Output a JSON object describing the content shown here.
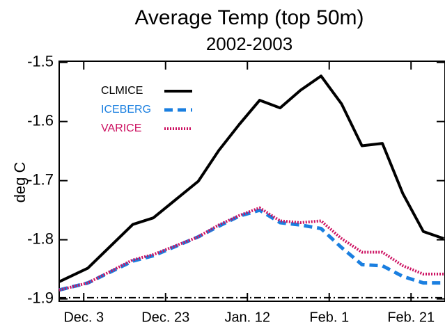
{
  "chart_data": {
    "type": "line",
    "title": "Average Temp (top 50m)",
    "subtitle": "2002-2003",
    "y_label": "deg C",
    "x": [
      -6,
      1,
      12,
      17,
      28,
      33,
      38,
      43,
      48,
      53,
      58,
      63,
      68,
      73,
      78,
      83,
      88
    ],
    "series": [
      {
        "name": "CLMICE",
        "color": "#000000",
        "style": "solid",
        "values": [
          -1.871,
          -1.848,
          -1.774,
          -1.763,
          -1.701,
          -1.649,
          -1.605,
          -1.564,
          -1.577,
          -1.547,
          -1.523,
          -1.57,
          -1.641,
          -1.637,
          -1.722,
          -1.786,
          -1.798
        ]
      },
      {
        "name": "ICEBERG",
        "color": "#1a7fe0",
        "style": "dashed",
        "values": [
          -1.885,
          -1.873,
          -1.836,
          -1.827,
          -1.795,
          -1.777,
          -1.76,
          -1.75,
          -1.771,
          -1.775,
          -1.781,
          -1.813,
          -1.842,
          -1.844,
          -1.862,
          -1.873,
          -1.873
        ]
      },
      {
        "name": "VARICE",
        "color": "#cc1060",
        "style": "dotted",
        "values": [
          -1.885,
          -1.873,
          -1.834,
          -1.825,
          -1.795,
          -1.775,
          -1.759,
          -1.746,
          -1.768,
          -1.771,
          -1.768,
          -1.798,
          -1.821,
          -1.821,
          -1.844,
          -1.858,
          -1.858
        ]
      }
    ],
    "reference_line": -1.898,
    "xlim": [
      -6,
      88.3
    ],
    "xticks": [
      {
        "value": 0,
        "label": "Dec. 3"
      },
      {
        "value": 20,
        "label": "Dec. 23"
      },
      {
        "value": 40,
        "label": "Jan. 12"
      },
      {
        "value": 60,
        "label": "Feb. 1"
      },
      {
        "value": 80,
        "label": "Feb. 21"
      }
    ],
    "ylim": [
      -1.904,
      -1.498
    ],
    "yticks": [
      -1.5,
      -1.6,
      -1.7,
      -1.8,
      -1.9
    ],
    "legend": "top-left"
  }
}
